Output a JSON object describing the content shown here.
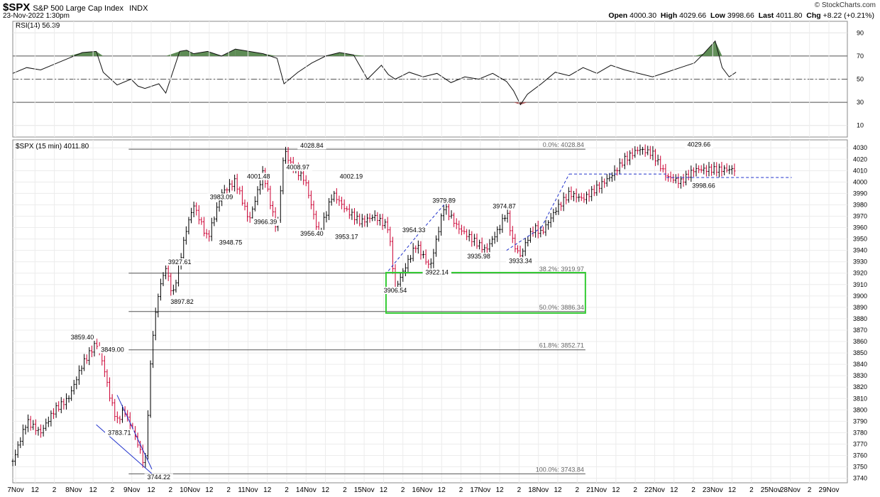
{
  "header": {
    "symbol": "$SPX",
    "name": "S&P 500 Large Cap Index",
    "exchange": "INDX",
    "datetime": "23-Nov-2022 1:30pm",
    "open_label": "Open",
    "open": "4000.30",
    "high_label": "High",
    "high": "4029.66",
    "low_label": "Low",
    "low": "3998.66",
    "last_label": "Last",
    "last": "4011.80",
    "chg_label": "Chg",
    "chg": "+8.22 (+0.21%)",
    "logo": "© StockCharts.com"
  },
  "colors": {
    "up": "#000000",
    "down": "#cc0033",
    "rsi_fill_high": "#5e8c55",
    "rsi_fill_low": "#b05a5a",
    "box": "#33cc33",
    "trend": "#2233cc"
  },
  "chart_data": [
    {
      "type": "line",
      "title": "RSI(14) 56.39",
      "ylim": [
        0,
        100
      ],
      "ticks": [
        10,
        30,
        50,
        70,
        90
      ],
      "reference_lines": [
        30,
        50,
        70
      ],
      "x": [
        0,
        6,
        12,
        18,
        24,
        30,
        36,
        39,
        45,
        51,
        54,
        57,
        63,
        66,
        72,
        75,
        78,
        84,
        90,
        96,
        102,
        108,
        114,
        117,
        123,
        129,
        135,
        141,
        147,
        153,
        159,
        162,
        165,
        171,
        177,
        183,
        189,
        195,
        201,
        207,
        213,
        216,
        219,
        222,
        228,
        234,
        240,
        246,
        252,
        258,
        264,
        270,
        276,
        282,
        288,
        294,
        298,
        303,
        306,
        309,
        312
      ],
      "values": [
        55,
        60,
        58,
        63,
        68,
        73,
        74,
        56,
        45,
        50,
        44,
        42,
        46,
        38,
        74,
        75,
        72,
        74,
        70,
        76,
        74,
        72,
        68,
        46,
        56,
        64,
        70,
        73,
        71,
        50,
        62,
        54,
        50,
        56,
        52,
        55,
        47,
        52,
        50,
        55,
        48,
        40,
        28,
        37,
        46,
        56,
        53,
        60,
        55,
        62,
        58,
        55,
        52,
        56,
        60,
        64,
        72,
        83,
        60,
        52,
        56
      ]
    },
    {
      "type": "bar",
      "title": "$SPX (15 min) 4011.80",
      "ylim": [
        3736,
        4037
      ],
      "yticks": [
        3740,
        3750,
        3760,
        3770,
        3780,
        3790,
        3800,
        3810,
        3820,
        3830,
        3840,
        3850,
        3860,
        3870,
        3880,
        3890,
        3900,
        3910,
        3920,
        3930,
        3940,
        3950,
        3960,
        3970,
        3980,
        3990,
        4000,
        4010,
        4020,
        4030
      ],
      "xticks": [
        "7Nov",
        "12",
        "2",
        "8Nov",
        "12",
        "2",
        "9Nov",
        "12",
        "2",
        "10Nov",
        "12",
        "2",
        "11Nov",
        "12",
        "2",
        "14Nov",
        "12",
        "2",
        "15Nov",
        "12",
        "2",
        "16Nov",
        "12",
        "2",
        "17Nov",
        "12",
        "2",
        "18Nov",
        "12",
        "2",
        "21Nov",
        "12",
        "2",
        "22Nov",
        "12",
        "2",
        "23Nov",
        "12",
        "2",
        "25Nov",
        "28Nov",
        "2",
        "29Nov"
      ],
      "x": [
        0,
        6,
        12,
        18,
        24,
        30,
        36,
        39,
        42,
        45,
        48,
        51,
        54,
        57,
        60,
        63,
        66,
        69,
        72,
        75,
        78,
        84,
        90,
        96,
        102,
        108,
        114,
        117,
        120,
        126,
        132,
        138,
        144,
        150,
        156,
        162,
        165,
        168,
        174,
        180,
        186,
        192,
        198,
        204,
        210,
        213,
        216,
        219,
        222,
        225,
        228,
        234,
        240,
        246,
        252,
        258,
        264,
        270,
        276,
        282,
        288,
        294,
        297,
        300,
        303,
        306,
        309,
        312
      ],
      "values": [
        3755,
        3790,
        3780,
        3800,
        3810,
        3840,
        3859,
        3840,
        3810,
        3790,
        3800,
        3785,
        3770,
        3750,
        3860,
        3905,
        3925,
        3900,
        3930,
        3960,
        3980,
        3950,
        3990,
        4001,
        3966,
        4009,
        3956,
        4029,
        4015,
        4002,
        3953,
        3990,
        3975,
        3965,
        3970,
        3960,
        3906,
        3920,
        3945,
        3925,
        3979,
        3960,
        3950,
        3940,
        3960,
        3974,
        3945,
        3935,
        3950,
        3960,
        3955,
        3975,
        3990,
        3985,
        3995,
        4005,
        4020,
        4029,
        4025,
        4005,
        4000,
        4011,
        4011,
        4011,
        4011,
        4011,
        4011,
        4011
      ],
      "annotations": [
        "3859.40",
        "3849.00",
        "3783.71",
        "3744.22",
        "3927.61",
        "3897.82",
        "3983.09",
        "3948.75",
        "4001.48",
        "3966.39",
        "4008.97",
        "4028.84",
        "3956.40",
        "4002.19",
        "3953.17",
        "3906.54",
        "3954.33",
        "3979.89",
        "3922.14",
        "3974.87",
        "3935.98",
        "3933.34",
        "4029.66",
        "3998.66"
      ],
      "fib_levels": [
        {
          "label": "0.0%: 4028.84",
          "value": 4028.84
        },
        {
          "label": "38.2%: 3919.97",
          "value": 3919.97
        },
        {
          "label": "50.0%: 3886.34",
          "value": 3886.34
        },
        {
          "label": "61.8%: 3852.71",
          "value": 3852.71
        },
        {
          "label": "100.0%: 3743.84",
          "value": 3743.84
        }
      ]
    }
  ]
}
